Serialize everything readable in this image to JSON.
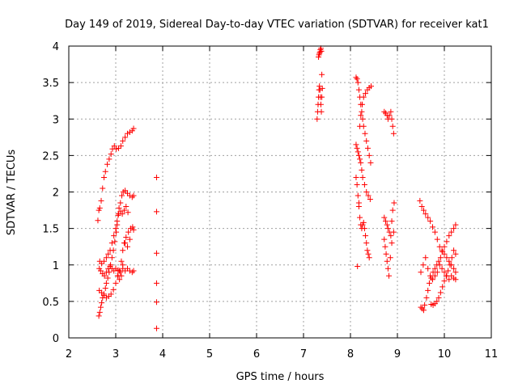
{
  "chart_data": {
    "type": "scatter",
    "title": "Day 149 of 2019, Sidereal Day-to-day VTEC variation (SDTVAR) for receiver kat1",
    "xlabel": "GPS time / hours",
    "ylabel": "SDTVAR / TECUs",
    "xlim": [
      2,
      11
    ],
    "ylim": [
      0,
      4
    ],
    "xticks": [
      "2",
      "3",
      "4",
      "5",
      "6",
      "7",
      "8",
      "9",
      "10",
      "11"
    ],
    "yticks": [
      "0",
      "0.5",
      "1",
      "1.5",
      "2",
      "2.5",
      "3",
      "3.5",
      "4"
    ],
    "grid": true,
    "marker": "+",
    "color": "#ff0000",
    "series": [
      {
        "name": "SDTVAR",
        "points": [
          [
            2.62,
            1.61
          ],
          [
            2.64,
            1.75
          ],
          [
            2.66,
            1.78
          ],
          [
            2.69,
            1.88
          ],
          [
            2.72,
            2.05
          ],
          [
            2.75,
            2.2
          ],
          [
            2.78,
            2.28
          ],
          [
            2.82,
            2.38
          ],
          [
            2.86,
            2.45
          ],
          [
            2.9,
            2.52
          ],
          [
            2.93,
            2.59
          ],
          [
            2.97,
            2.63
          ],
          [
            3.01,
            2.59
          ],
          [
            3.06,
            2.6
          ],
          [
            3.11,
            2.63
          ],
          [
            3.15,
            2.7
          ],
          [
            3.2,
            2.75
          ],
          [
            3.25,
            2.8
          ],
          [
            3.3,
            2.82
          ],
          [
            3.35,
            2.84
          ],
          [
            3.38,
            2.87
          ],
          [
            2.64,
            0.3
          ],
          [
            2.66,
            0.35
          ],
          [
            2.68,
            0.42
          ],
          [
            2.7,
            0.48
          ],
          [
            2.72,
            0.55
          ],
          [
            2.75,
            0.6
          ],
          [
            2.78,
            0.68
          ],
          [
            2.8,
            0.75
          ],
          [
            2.83,
            0.82
          ],
          [
            2.86,
            0.9
          ],
          [
            2.89,
            1.0
          ],
          [
            2.92,
            1.1
          ],
          [
            2.95,
            1.2
          ],
          [
            2.98,
            1.32
          ],
          [
            3.01,
            1.45
          ],
          [
            3.03,
            1.55
          ],
          [
            3.05,
            1.68
          ],
          [
            3.07,
            1.78
          ],
          [
            3.1,
            1.85
          ],
          [
            3.13,
            1.95
          ],
          [
            3.16,
            2.0
          ],
          [
            3.2,
            2.02
          ],
          [
            3.25,
            1.98
          ],
          [
            3.3,
            1.95
          ],
          [
            3.35,
            1.93
          ],
          [
            3.38,
            1.95
          ],
          [
            2.65,
            0.95
          ],
          [
            2.68,
            0.92
          ],
          [
            2.72,
            0.88
          ],
          [
            2.76,
            0.85
          ],
          [
            2.8,
            0.9
          ],
          [
            2.84,
            0.95
          ],
          [
            2.88,
            0.98
          ],
          [
            2.92,
            0.95
          ],
          [
            2.96,
            0.92
          ],
          [
            3.0,
            0.95
          ],
          [
            3.05,
            0.93
          ],
          [
            3.1,
            0.9
          ],
          [
            3.15,
            0.95
          ],
          [
            3.2,
            0.92
          ],
          [
            3.25,
            0.95
          ],
          [
            3.3,
            0.92
          ],
          [
            3.35,
            0.9
          ],
          [
            3.38,
            0.92
          ],
          [
            2.65,
            0.65
          ],
          [
            2.7,
            0.62
          ],
          [
            2.75,
            0.58
          ],
          [
            2.8,
            0.55
          ],
          [
            2.85,
            0.57
          ],
          [
            2.9,
            0.6
          ],
          [
            2.95,
            0.66
          ],
          [
            3.0,
            0.75
          ],
          [
            3.04,
            0.85
          ],
          [
            3.08,
            0.92
          ],
          [
            3.12,
            1.05
          ],
          [
            3.15,
            1.2
          ],
          [
            3.18,
            1.3
          ],
          [
            3.22,
            1.38
          ],
          [
            3.27,
            1.45
          ],
          [
            3.32,
            1.5
          ],
          [
            3.36,
            1.52
          ],
          [
            3.38,
            1.48
          ],
          [
            2.66,
            1.05
          ],
          [
            2.7,
            1.02
          ],
          [
            2.75,
            1.05
          ],
          [
            2.8,
            1.1
          ],
          [
            2.84,
            1.15
          ],
          [
            2.88,
            1.2
          ],
          [
            2.92,
            1.3
          ],
          [
            2.96,
            1.4
          ],
          [
            3.0,
            1.5
          ],
          [
            3.03,
            1.6
          ],
          [
            3.06,
            1.7
          ],
          [
            3.1,
            1.73
          ],
          [
            3.14,
            1.7
          ],
          [
            3.18,
            1.75
          ],
          [
            3.22,
            1.8
          ],
          [
            3.26,
            1.72
          ],
          [
            3.05,
            0.85
          ],
          [
            3.08,
            0.8
          ],
          [
            3.12,
            0.85
          ],
          [
            3.15,
            1.0
          ],
          [
            3.2,
            1.3
          ],
          [
            3.25,
            1.25
          ],
          [
            3.3,
            1.35
          ],
          [
            3.87,
            2.2
          ],
          [
            3.87,
            1.73
          ],
          [
            3.87,
            1.16
          ],
          [
            3.87,
            0.75
          ],
          [
            3.87,
            0.49
          ],
          [
            3.87,
            0.13
          ],
          [
            7.29,
            3.0
          ],
          [
            7.3,
            3.1
          ],
          [
            7.31,
            3.2
          ],
          [
            7.32,
            3.3
          ],
          [
            7.33,
            3.4
          ],
          [
            7.34,
            3.45
          ],
          [
            7.35,
            3.4
          ],
          [
            7.36,
            3.3
          ],
          [
            7.37,
            3.2
          ],
          [
            7.38,
            3.1
          ],
          [
            7.39,
            3.3
          ],
          [
            7.4,
            3.42
          ],
          [
            7.32,
            3.85
          ],
          [
            7.33,
            3.88
          ],
          [
            7.34,
            3.9
          ],
          [
            7.35,
            3.92
          ],
          [
            7.36,
            3.95
          ],
          [
            7.37,
            3.97
          ],
          [
            7.38,
            3.93
          ],
          [
            7.39,
            3.61
          ],
          [
            8.12,
            3.57
          ],
          [
            8.14,
            3.55
          ],
          [
            8.16,
            3.5
          ],
          [
            8.18,
            3.4
          ],
          [
            8.2,
            3.3
          ],
          [
            8.22,
            3.2
          ],
          [
            8.24,
            3.1
          ],
          [
            8.26,
            3.0
          ],
          [
            8.28,
            2.9
          ],
          [
            8.31,
            2.8
          ],
          [
            8.34,
            2.7
          ],
          [
            8.37,
            2.6
          ],
          [
            8.4,
            2.5
          ],
          [
            8.43,
            2.4
          ],
          [
            8.12,
            2.2
          ],
          [
            8.14,
            2.1
          ],
          [
            8.16,
            1.95
          ],
          [
            8.18,
            1.8
          ],
          [
            8.2,
            1.65
          ],
          [
            8.22,
            1.55
          ],
          [
            8.24,
            1.5
          ],
          [
            8.26,
            1.55
          ],
          [
            8.28,
            1.58
          ],
          [
            8.3,
            1.5
          ],
          [
            8.32,
            1.4
          ],
          [
            8.34,
            1.3
          ],
          [
            8.36,
            1.2
          ],
          [
            8.38,
            1.15
          ],
          [
            8.4,
            1.1
          ],
          [
            8.12,
            2.65
          ],
          [
            8.14,
            2.6
          ],
          [
            8.16,
            2.55
          ],
          [
            8.18,
            2.5
          ],
          [
            8.2,
            2.45
          ],
          [
            8.22,
            2.4
          ],
          [
            8.24,
            2.3
          ],
          [
            8.26,
            2.2
          ],
          [
            8.3,
            2.1
          ],
          [
            8.34,
            2.0
          ],
          [
            8.38,
            1.95
          ],
          [
            8.42,
            1.9
          ],
          [
            8.15,
            0.98
          ],
          [
            8.18,
            1.85
          ],
          [
            8.2,
            2.9
          ],
          [
            8.22,
            3.05
          ],
          [
            8.25,
            3.2
          ],
          [
            8.28,
            3.3
          ],
          [
            8.32,
            3.35
          ],
          [
            8.36,
            3.4
          ],
          [
            8.4,
            3.43
          ],
          [
            8.44,
            3.45
          ],
          [
            8.72,
            3.1
          ],
          [
            8.75,
            3.08
          ],
          [
            8.78,
            3.05
          ],
          [
            8.8,
            3.0
          ],
          [
            8.83,
            3.05
          ],
          [
            8.86,
            3.1
          ],
          [
            8.88,
            3.0
          ],
          [
            8.9,
            2.9
          ],
          [
            8.92,
            2.8
          ],
          [
            8.72,
            1.65
          ],
          [
            8.75,
            1.6
          ],
          [
            8.78,
            1.55
          ],
          [
            8.8,
            1.5
          ],
          [
            8.83,
            1.45
          ],
          [
            8.86,
            1.4
          ],
          [
            8.88,
            1.6
          ],
          [
            8.9,
            1.75
          ],
          [
            8.93,
            1.85
          ],
          [
            8.72,
            1.35
          ],
          [
            8.74,
            1.25
          ],
          [
            8.76,
            1.15
          ],
          [
            8.78,
            1.05
          ],
          [
            8.8,
            0.95
          ],
          [
            8.82,
            0.85
          ],
          [
            8.85,
            1.1
          ],
          [
            8.88,
            1.3
          ],
          [
            8.92,
            1.45
          ],
          [
            9.48,
            1.88
          ],
          [
            9.52,
            1.8
          ],
          [
            9.56,
            1.75
          ],
          [
            9.6,
            1.7
          ],
          [
            9.65,
            1.65
          ],
          [
            9.7,
            1.6
          ],
          [
            9.75,
            1.52
          ],
          [
            9.8,
            1.45
          ],
          [
            9.85,
            1.35
          ],
          [
            9.9,
            1.25
          ],
          [
            9.95,
            1.2
          ],
          [
            10.0,
            1.15
          ],
          [
            10.05,
            1.1
          ],
          [
            10.1,
            1.05
          ],
          [
            10.15,
            1.0
          ],
          [
            10.2,
            0.95
          ],
          [
            10.24,
            0.9
          ],
          [
            9.5,
            0.42
          ],
          [
            9.53,
            0.4
          ],
          [
            9.56,
            0.38
          ],
          [
            9.58,
            0.45
          ],
          [
            9.62,
            0.55
          ],
          [
            9.65,
            0.65
          ],
          [
            9.68,
            0.75
          ],
          [
            9.72,
            0.82
          ],
          [
            9.76,
            0.9
          ],
          [
            9.8,
            0.95
          ],
          [
            9.84,
            1.0
          ],
          [
            9.88,
            1.05
          ],
          [
            9.92,
            1.1
          ],
          [
            9.96,
            1.18
          ],
          [
            10.0,
            1.25
          ],
          [
            10.05,
            1.32
          ],
          [
            10.1,
            1.4
          ],
          [
            10.15,
            1.45
          ],
          [
            10.2,
            1.5
          ],
          [
            10.24,
            1.55
          ],
          [
            9.72,
            0.46
          ],
          [
            9.76,
            0.45
          ],
          [
            9.8,
            0.47
          ],
          [
            9.84,
            0.5
          ],
          [
            9.88,
            0.55
          ],
          [
            9.92,
            0.62
          ],
          [
            9.96,
            0.7
          ],
          [
            10.0,
            0.78
          ],
          [
            10.04,
            0.85
          ],
          [
            10.08,
            0.92
          ],
          [
            10.12,
            1.0
          ],
          [
            10.16,
            1.1
          ],
          [
            10.2,
            1.2
          ],
          [
            10.24,
            1.15
          ],
          [
            9.5,
            0.9
          ],
          [
            9.55,
            1.0
          ],
          [
            9.6,
            1.1
          ],
          [
            9.65,
            0.95
          ],
          [
            9.7,
            0.85
          ],
          [
            9.75,
            0.8
          ],
          [
            9.8,
            0.85
          ],
          [
            9.85,
            0.9
          ],
          [
            9.9,
            1.0
          ],
          [
            9.95,
            0.95
          ],
          [
            10.0,
            0.9
          ],
          [
            10.05,
            0.85
          ],
          [
            10.1,
            0.8
          ],
          [
            10.15,
            0.85
          ],
          [
            10.2,
            0.82
          ],
          [
            10.24,
            0.8
          ]
        ]
      }
    ]
  }
}
